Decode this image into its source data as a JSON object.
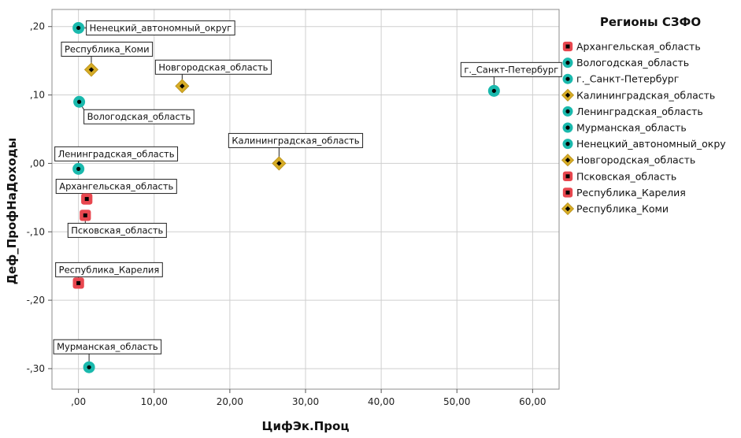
{
  "chart_data": {
    "type": "scatter",
    "xlabel": "ЦифЭк.Проц",
    "ylabel": "Деф_ПрофНаДоходы",
    "xlim": [
      -3.5,
      63.5
    ],
    "ylim": [
      -0.33,
      0.225
    ],
    "xticks": [
      0,
      10,
      20,
      30,
      40,
      50,
      60
    ],
    "xtick_labels": [
      ",00",
      "10,00",
      "20,00",
      "30,00",
      "40,00",
      "50,00",
      "60,00"
    ],
    "yticks": [
      0.2,
      0.1,
      0.0,
      -0.1,
      -0.2,
      -0.3
    ],
    "ytick_labels": [
      ",20",
      ",10",
      ",00",
      "-,10",
      "-,20",
      "-,30"
    ],
    "grid": true,
    "legend": {
      "title": "Регионы СЗФО",
      "placement": "right",
      "entries": [
        {
          "label": "Архангельская_область",
          "marker": "square"
        },
        {
          "label": "Вологодская_область",
          "marker": "circle"
        },
        {
          "label": "г._Санкт-Петербург",
          "marker": "circle"
        },
        {
          "label": "Калининградская_область",
          "marker": "diamond"
        },
        {
          "label": "Ленинградская_область",
          "marker": "circle"
        },
        {
          "label": "Мурманская_область",
          "marker": "circle"
        },
        {
          "label": "Ненецкий_автономный_окру",
          "marker": "circle"
        },
        {
          "label": "Новгородская_область",
          "marker": "diamond"
        },
        {
          "label": "Псковская_область",
          "marker": "square"
        },
        {
          "label": "Республика_Карелия",
          "marker": "square"
        },
        {
          "label": "Республика_Коми",
          "marker": "diamond"
        }
      ]
    },
    "marker_colors": {
      "square": "#e8474f",
      "circle": "#1ab9ad",
      "diamond": "#d6ac26",
      "center": "#000000"
    },
    "points": [
      {
        "label": "Ненецкий_автономный_округ",
        "x": 0.0,
        "y": 0.198,
        "marker": "circle"
      },
      {
        "label": "Республика_Коми",
        "x": 1.7,
        "y": 0.137,
        "marker": "diamond"
      },
      {
        "label": "Новгородская_область",
        "x": 13.7,
        "y": 0.113,
        "marker": "diamond"
      },
      {
        "label": "г._Санкт-Петербург",
        "x": 54.9,
        "y": 0.106,
        "marker": "circle"
      },
      {
        "label": "Вологодская_область",
        "x": 0.1,
        "y": 0.09,
        "marker": "circle"
      },
      {
        "label": "Калининградская_область",
        "x": 26.5,
        "y": 0.0,
        "marker": "diamond"
      },
      {
        "label": "Ленинградская_область",
        "x": 0.0,
        "y": -0.008,
        "marker": "circle"
      },
      {
        "label": "Архангельская_область",
        "x": 1.1,
        "y": -0.052,
        "marker": "square"
      },
      {
        "label": "Псковская_область",
        "x": 0.9,
        "y": -0.076,
        "marker": "square"
      },
      {
        "label": "Республика_Карелия",
        "x": 0.0,
        "y": -0.175,
        "marker": "square"
      },
      {
        "label": "Мурманская_область",
        "x": 1.4,
        "y": -0.298,
        "marker": "circle"
      }
    ]
  }
}
